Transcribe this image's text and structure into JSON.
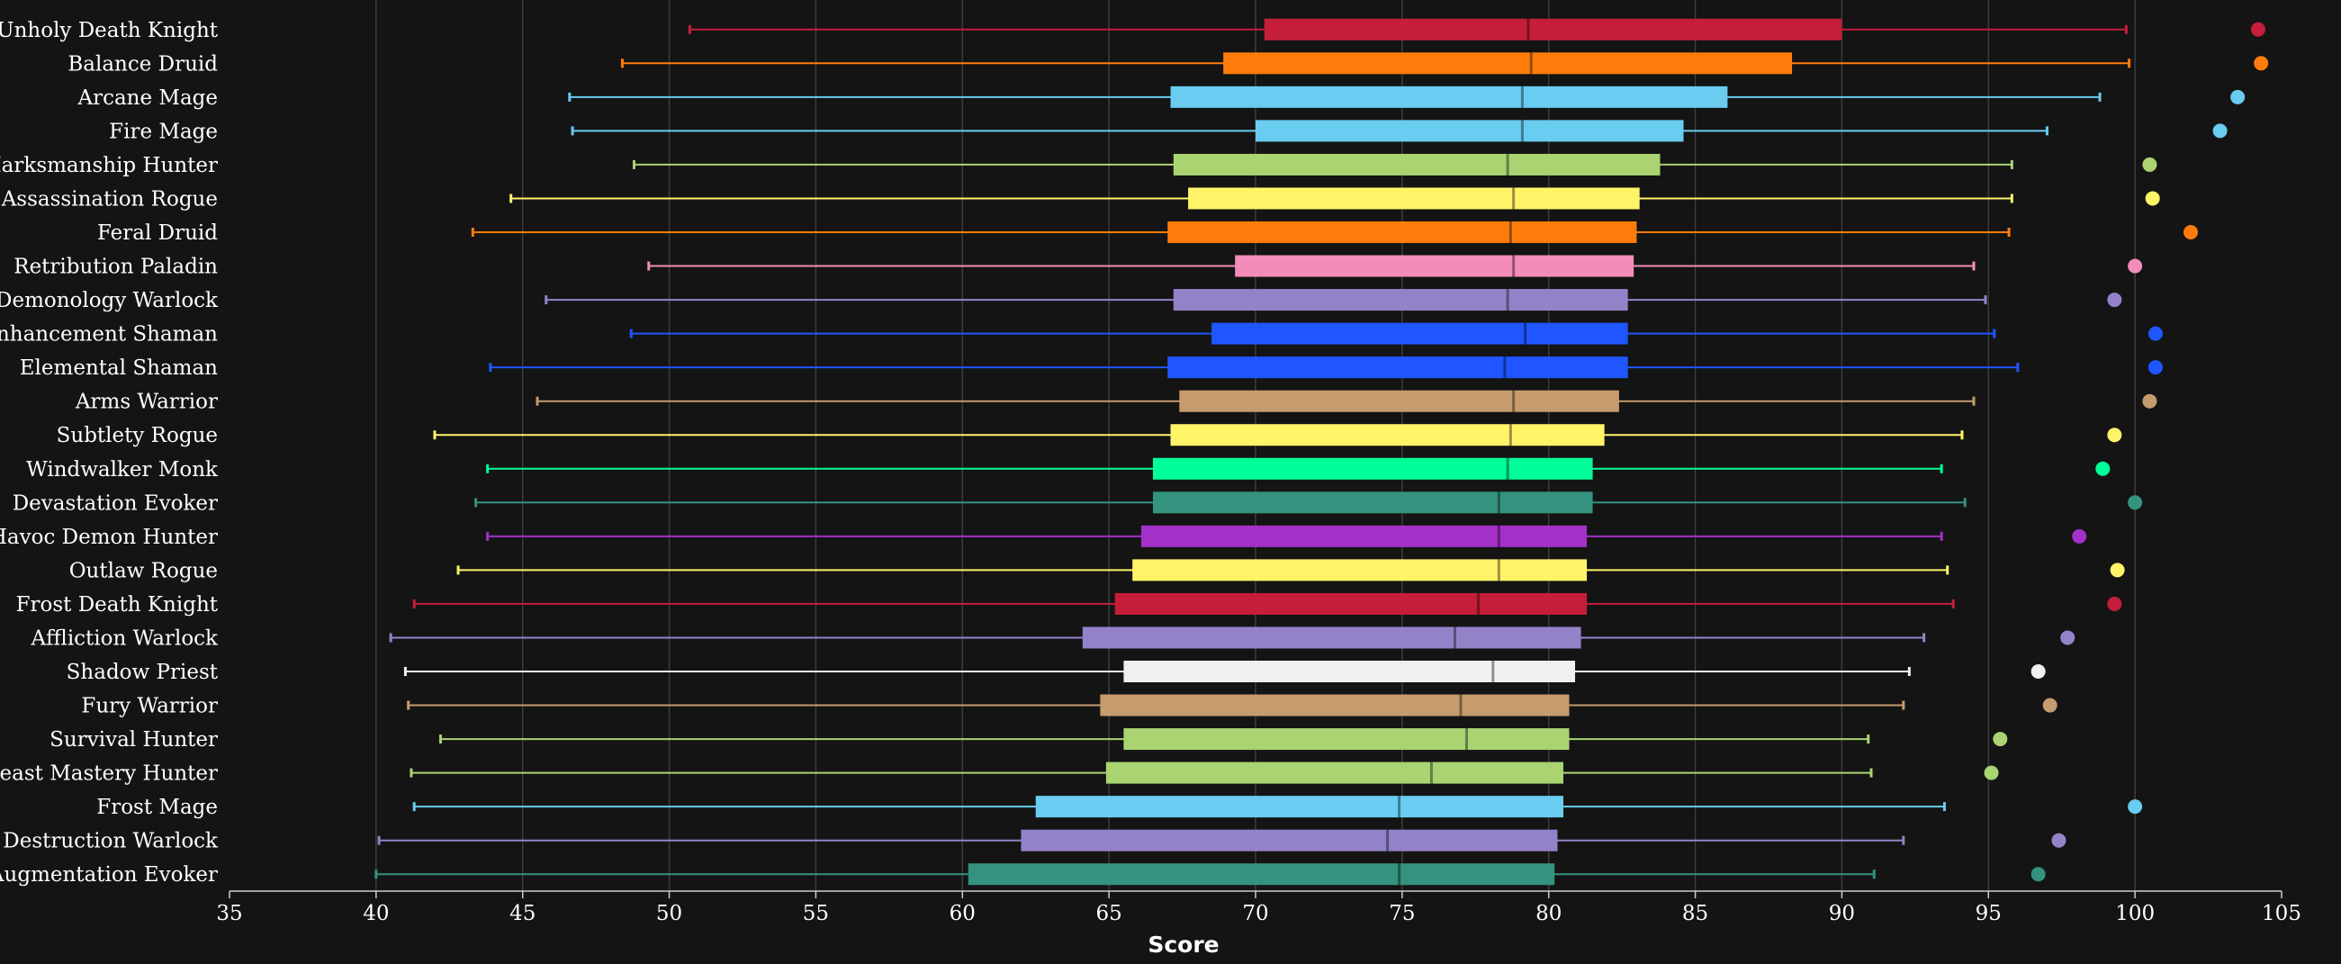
{
  "chart_data": {
    "type": "boxplot",
    "xlabel": "Score",
    "ylabel": "",
    "title": "",
    "xlim": [
      35,
      105
    ],
    "xticks": [
      35,
      40,
      45,
      50,
      55,
      60,
      65,
      70,
      75,
      80,
      85,
      90,
      95,
      100,
      105
    ],
    "grid": "vertical",
    "orientation": "horizontal",
    "categories": [
      "Unholy Death Knight",
      "Balance Druid",
      "Arcane Mage",
      "Fire Mage",
      "Marksmanship Hunter",
      "Assassination Rogue",
      "Feral Druid",
      "Retribution Paladin",
      "Demonology Warlock",
      "Enhancement Shaman",
      "Elemental Shaman",
      "Arms Warrior",
      "Subtlety Rogue",
      "Windwalker Monk",
      "Devastation Evoker",
      "Havoc Demon Hunter",
      "Outlaw Rogue",
      "Frost Death Knight",
      "Affliction Warlock",
      "Shadow Priest",
      "Fury Warrior",
      "Survival Hunter",
      "Beast Mastery Hunter",
      "Frost Mage",
      "Destruction Warlock",
      "Augmentation Evoker"
    ],
    "series": [
      {
        "min": 50.7,
        "q1": 70.3,
        "median": 79.3,
        "q3": 90.0,
        "max": 99.7,
        "outlier": 104.2,
        "color": "#C41E3A"
      },
      {
        "min": 48.4,
        "q1": 68.9,
        "median": 79.4,
        "q3": 88.3,
        "max": 99.8,
        "outlier": 104.3,
        "color": "#FF7C0A"
      },
      {
        "min": 46.6,
        "q1": 67.1,
        "median": 79.1,
        "q3": 86.1,
        "max": 98.8,
        "outlier": 103.5,
        "color": "#69CCF0"
      },
      {
        "min": 46.7,
        "q1": 70.0,
        "median": 79.1,
        "q3": 84.6,
        "max": 97.0,
        "outlier": 102.9,
        "color": "#69CCF0"
      },
      {
        "min": 48.8,
        "q1": 67.2,
        "median": 78.6,
        "q3": 83.8,
        "max": 95.8,
        "outlier": 100.5,
        "color": "#AAD372"
      },
      {
        "min": 44.6,
        "q1": 67.7,
        "median": 78.8,
        "q3": 83.1,
        "max": 95.8,
        "outlier": 100.6,
        "color": "#FFF468"
      },
      {
        "min": 43.3,
        "q1": 67.0,
        "median": 78.7,
        "q3": 83.0,
        "max": 95.7,
        "outlier": 101.9,
        "color": "#FF7C0A"
      },
      {
        "min": 49.3,
        "q1": 69.3,
        "median": 78.8,
        "q3": 82.9,
        "max": 94.5,
        "outlier": 100.0,
        "color": "#F48CBA"
      },
      {
        "min": 45.8,
        "q1": 67.2,
        "median": 78.6,
        "q3": 82.7,
        "max": 94.9,
        "outlier": 99.3,
        "color": "#9482C9"
      },
      {
        "min": 48.7,
        "q1": 68.5,
        "median": 79.2,
        "q3": 82.7,
        "max": 95.2,
        "outlier": 100.7,
        "color": "#1F56FF"
      },
      {
        "min": 43.9,
        "q1": 67.0,
        "median": 78.5,
        "q3": 82.7,
        "max": 96.0,
        "outlier": 100.7,
        "color": "#1F56FF"
      },
      {
        "min": 45.5,
        "q1": 67.4,
        "median": 78.8,
        "q3": 82.4,
        "max": 94.5,
        "outlier": 100.5,
        "color": "#C69B6D"
      },
      {
        "min": 42.0,
        "q1": 67.1,
        "median": 78.7,
        "q3": 81.9,
        "max": 94.1,
        "outlier": 99.3,
        "color": "#FFF468"
      },
      {
        "min": 43.8,
        "q1": 66.5,
        "median": 78.6,
        "q3": 81.5,
        "max": 93.4,
        "outlier": 98.9,
        "color": "#00FF98"
      },
      {
        "min": 43.4,
        "q1": 66.5,
        "median": 78.3,
        "q3": 81.5,
        "max": 94.2,
        "outlier": 100.0,
        "color": "#33937F"
      },
      {
        "min": 43.8,
        "q1": 66.1,
        "median": 78.3,
        "q3": 81.3,
        "max": 93.4,
        "outlier": 98.1,
        "color": "#A330C9"
      },
      {
        "min": 42.8,
        "q1": 65.8,
        "median": 78.3,
        "q3": 81.3,
        "max": 93.6,
        "outlier": 99.4,
        "color": "#FFF468"
      },
      {
        "min": 41.3,
        "q1": 65.2,
        "median": 77.6,
        "q3": 81.3,
        "max": 93.8,
        "outlier": 99.3,
        "color": "#C41E3A"
      },
      {
        "min": 40.5,
        "q1": 64.1,
        "median": 76.8,
        "q3": 81.1,
        "max": 92.8,
        "outlier": 97.7,
        "color": "#9482C9"
      },
      {
        "min": 41.0,
        "q1": 65.5,
        "median": 78.1,
        "q3": 80.9,
        "max": 92.3,
        "outlier": 96.7,
        "color": "#F0F0F0"
      },
      {
        "min": 41.1,
        "q1": 64.7,
        "median": 77.0,
        "q3": 80.7,
        "max": 92.1,
        "outlier": 97.1,
        "color": "#C69B6D"
      },
      {
        "min": 42.2,
        "q1": 65.5,
        "median": 77.2,
        "q3": 80.7,
        "max": 90.9,
        "outlier": 95.4,
        "color": "#AAD372"
      },
      {
        "min": 41.2,
        "q1": 64.9,
        "median": 76.0,
        "q3": 80.5,
        "max": 91.0,
        "outlier": 95.1,
        "color": "#AAD372"
      },
      {
        "min": 41.3,
        "q1": 62.5,
        "median": 74.9,
        "q3": 80.5,
        "max": 93.5,
        "outlier": 100.0,
        "color": "#69CCF0"
      },
      {
        "min": 40.1,
        "q1": 62.0,
        "median": 74.5,
        "q3": 80.3,
        "max": 92.1,
        "outlier": 97.4,
        "color": "#9482C9"
      },
      {
        "min": 40.0,
        "q1": 60.2,
        "median": 74.9,
        "q3": 80.2,
        "max": 91.1,
        "outlier": 96.7,
        "color": "#33937F"
      }
    ]
  }
}
